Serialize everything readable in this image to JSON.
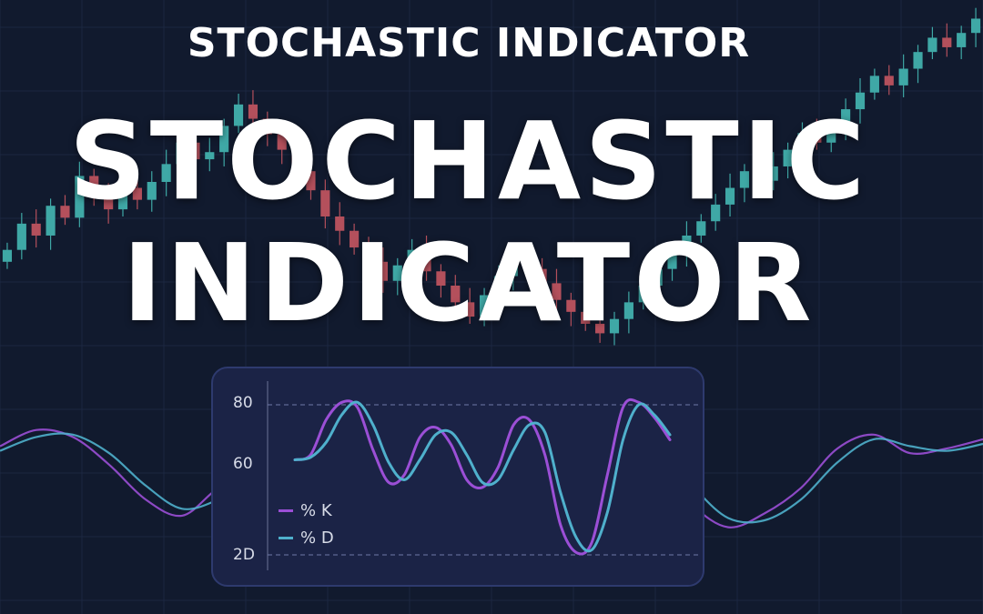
{
  "header": {
    "subtitle": "STOCHASTIC INDICATOR",
    "title_line1": "STOCHASTIC",
    "title_line2": "INDICATOR"
  },
  "colors": {
    "background": "#111a2e",
    "candle_up": "#3fa8a6",
    "candle_down": "#b4505c",
    "k_line": "#9b4fd6",
    "d_line": "#4fb0cc",
    "panel": "#1b2346"
  },
  "chart_data": [
    {
      "type": "line",
      "title": "",
      "xlabel": "",
      "ylabel": "",
      "y_ticks": [
        "80",
        "60",
        "2D"
      ],
      "ylim": [
        15,
        88
      ],
      "grid": "dashed horizontal lines at 80 and 20",
      "legend": "bottom-left",
      "series": [
        {
          "name": "% K",
          "color": "#9b4fd6",
          "values": [
            58,
            60,
            74,
            81,
            79,
            62,
            49,
            52,
            67,
            71,
            64,
            50,
            47,
            55,
            72,
            74,
            60,
            32,
            21,
            25,
            52,
            79,
            81,
            75,
            66
          ]
        },
        {
          "name": "% D",
          "color": "#4fb0cc",
          "values": [
            58,
            59,
            65,
            76,
            81,
            72,
            57,
            50,
            58,
            68,
            69,
            60,
            49,
            50,
            62,
            72,
            69,
            45,
            27,
            22,
            37,
            66,
            80,
            76,
            68
          ]
        }
      ]
    },
    {
      "type": "line",
      "title": "",
      "note": "background oscillator",
      "series": [
        {
          "values": [
            63,
            70,
            67,
            55,
            40,
            33,
            45,
            52,
            58,
            62,
            66,
            64,
            56,
            50,
            47,
            55,
            68,
            69,
            58,
            38,
            28,
            34,
            45,
            62,
            68,
            60,
            62,
            66
          ]
        },
        {
          "values": [
            61,
            67,
            68,
            60,
            46,
            36,
            40,
            49,
            55,
            60,
            64,
            65,
            60,
            53,
            49,
            51,
            63,
            68,
            63,
            46,
            32,
            31,
            40,
            56,
            66,
            63,
            61,
            64
          ]
        }
      ]
    },
    {
      "type": "candlestick",
      "title": "",
      "note": "background price chart",
      "closes": [
        148,
        170,
        160,
        185,
        175,
        210,
        195,
        182,
        200,
        190,
        205,
        220,
        238,
        224,
        230,
        252,
        270,
        258,
        245,
        232,
        214,
        198,
        176,
        164,
        150,
        138,
        122,
        135,
        148,
        130,
        118,
        104,
        92,
        110,
        126,
        140,
        132,
        120,
        106,
        96,
        86,
        78,
        90,
        104,
        118,
        132,
        146,
        160,
        172,
        186,
        200,
        214,
        206,
        218,
        232,
        246,
        238,
        250,
        266,
        280,
        294,
        286,
        300,
        314,
        326,
        318,
        330,
        342
      ]
    }
  ]
}
